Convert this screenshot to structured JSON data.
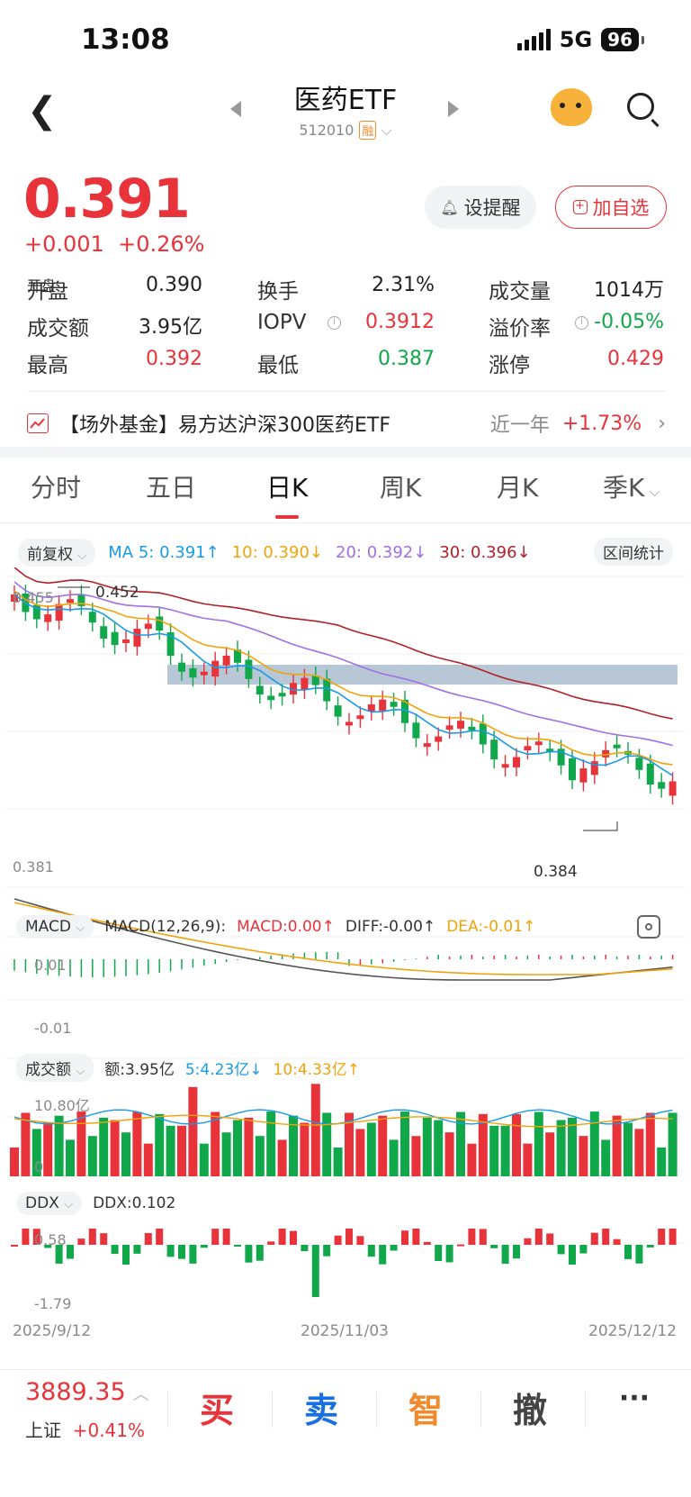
{
  "status": {
    "time": "13:08",
    "network": "5G",
    "battery": "96"
  },
  "header": {
    "title": "医药ETF",
    "code": "512010",
    "badge": "融"
  },
  "quote": {
    "price": "0.391",
    "change": "+0.001",
    "change_pct": "+0.26%",
    "remind_label": "设提醒",
    "add_label": "加自选"
  },
  "stats": [
    {
      "label": "开盘",
      "value": "0.390",
      "color": "#222222"
    },
    {
      "label": "换手",
      "value": "2.31%",
      "color": "#222222"
    },
    {
      "label": "成交量",
      "value": "1014万",
      "color": "#222222"
    },
    {
      "label": "成交额",
      "value": "3.95亿",
      "color": "#222222"
    },
    {
      "label": "IOPV",
      "value": "0.3912",
      "color": "#e8333b"
    },
    {
      "label": "溢价率",
      "value": "-0.05%",
      "color": "#10a84a"
    },
    {
      "label": "最高",
      "value": "0.392",
      "color": "#e8333b"
    },
    {
      "label": "最低",
      "value": "0.387",
      "color": "#10a84a"
    },
    {
      "label": "涨停",
      "value": "0.429",
      "color": "#e8333b"
    }
  ],
  "fund": {
    "text": "【场外基金】易方达沪深300医药ETF",
    "period": "近一年",
    "pct": "+1.73%"
  },
  "tabs": [
    "分时",
    "五日",
    "日K",
    "周K",
    "月K",
    "季K"
  ],
  "ma_row": {
    "adjust": "前复权",
    "ma5": "MA 5: 0.391↑",
    "ma10": "10: 0.390↓",
    "ma20": "20: 0.392↓",
    "ma30": "30: 0.396↓",
    "range_btn": "区间统计"
  },
  "kline": {
    "top_label": "0.455",
    "bottom_label": "0.381",
    "high_mark": "0.452",
    "low_mark": "0.384"
  },
  "macd": {
    "pill": "MACD",
    "params": "MACD(12,26,9):",
    "macd": "MACD:0.00↑",
    "diff": "DIFF:-0.00↑",
    "dea": "DEA:-0.01↑",
    "top_label": "0.01",
    "bottom_label": "-0.01"
  },
  "volume": {
    "pill": "成交额",
    "amount": "额:3.95亿",
    "ma5": "5:4.23亿↓",
    "ma10": "10:4.33亿↑",
    "top_label": "10.80亿",
    "bottom_label": "0"
  },
  "ddx": {
    "pill": "DDX",
    "value": "DDX:0.102",
    "top_label": "0.58",
    "bottom_label": "-1.79"
  },
  "dates": [
    "2025/9/12",
    "2025/11/03",
    "2025/12/12"
  ],
  "bottom": {
    "index_value": "3889.35",
    "index_name": "上证",
    "index_pct": "+0.41%",
    "buy": "买",
    "sell": "卖",
    "smart": "智",
    "cancel": "撤",
    "more": "···"
  },
  "colors": {
    "up": "#e8333b",
    "down": "#10a84a",
    "ma5": "#1a9be8",
    "ma10": "#f0a30a",
    "ma20": "#a070e6",
    "ma30": "#b3202a"
  }
}
